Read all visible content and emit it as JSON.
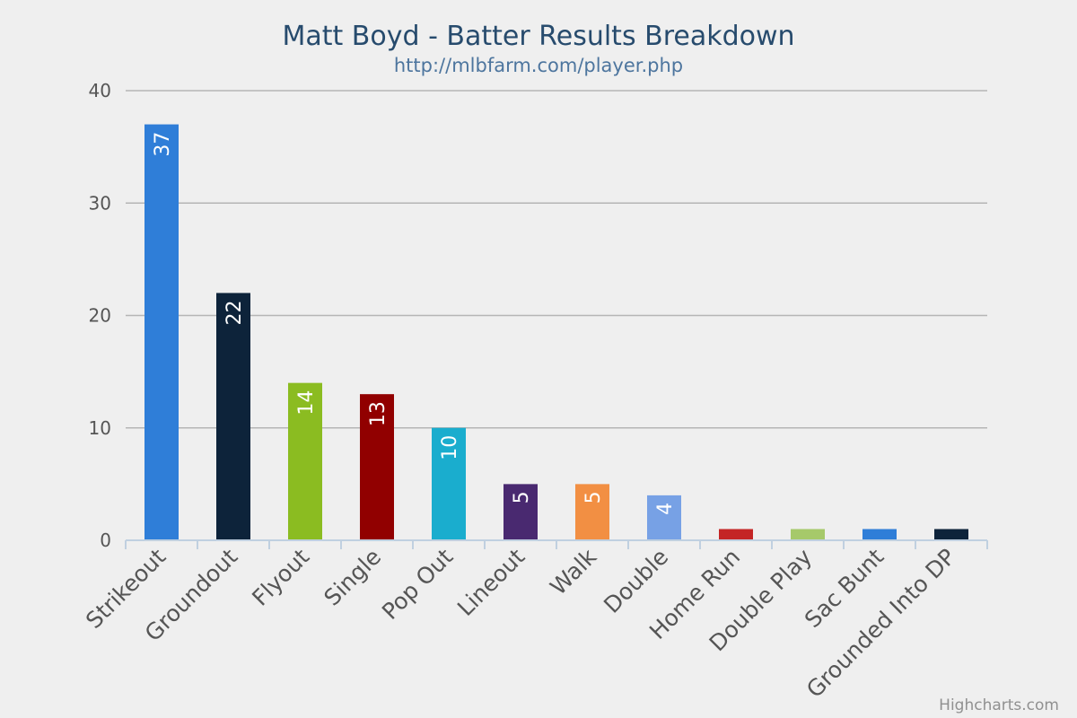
{
  "chart_data": {
    "type": "bar",
    "title": "Matt Boyd - Batter Results Breakdown",
    "subtitle": "http://mlbfarm.com/player.php",
    "credits": "Highcharts.com",
    "categories": [
      "Strikeout",
      "Groundout",
      "Flyout",
      "Single",
      "Pop Out",
      "Lineout",
      "Walk",
      "Double",
      "Home Run",
      "Double Play",
      "Sac Bunt",
      "Grounded Into DP"
    ],
    "values": [
      37,
      22,
      14,
      13,
      10,
      5,
      5,
      4,
      1,
      1,
      1,
      1
    ],
    "data_labels": [
      "37",
      "22",
      "14",
      "13",
      "10",
      "5",
      "5",
      "4",
      "",
      "",
      "",
      ""
    ],
    "colors": [
      "#2f7ed8",
      "#0d233a",
      "#8bbc21",
      "#910000",
      "#1aadce",
      "#492970",
      "#f28f43",
      "#77a1e5",
      "#c42525",
      "#a6c96a",
      "#2f7ed8",
      "#0d233a"
    ],
    "ylim": [
      0,
      40
    ],
    "yticks": [
      "0",
      "10",
      "20",
      "30",
      "40"
    ],
    "xlabel": "",
    "ylabel": "",
    "grid": true,
    "legend": false
  }
}
